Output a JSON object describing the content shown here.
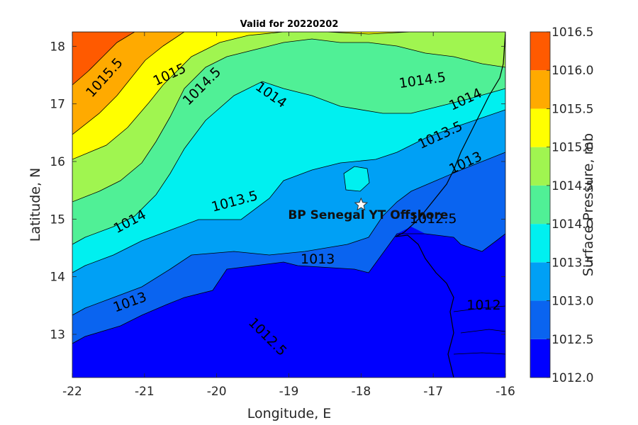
{
  "chart_data": {
    "type": "contour",
    "title": "Valid for 20220202",
    "xlabel": "Longitude, E",
    "ylabel": "Latitude, N",
    "xlim": [
      -22,
      -16
    ],
    "ylim": [
      12.25,
      18.25
    ],
    "xticks": [
      -22,
      -21,
      -20,
      -19,
      -18,
      -17,
      -16
    ],
    "yticks": [
      13,
      14,
      15,
      16,
      17,
      18
    ],
    "colorbar": {
      "label": "Surface Pressure, mb",
      "ticks": [
        "1012.0",
        "1012.5",
        "1013.0",
        "1013.5",
        "1014.0",
        "1014.5",
        "1015.0",
        "1015.5",
        "1016.0",
        "1016.5"
      ],
      "levels": [
        1012.0,
        1012.5,
        1013.0,
        1013.5,
        1014.0,
        1014.5,
        1015.0,
        1015.5,
        1016.0,
        1016.5
      ],
      "colors": [
        "#0000ff",
        "#0a64f0",
        "#00a0f5",
        "#00f0f0",
        "#50f096",
        "#a0f550",
        "#ffff00",
        "#ffaa00",
        "#ff5a00"
      ]
    },
    "contour_labels": [
      {
        "text": "1015.5",
        "lon": -21.55,
        "lat": 17.45,
        "angle": -48
      },
      {
        "text": "1015",
        "lon": -20.65,
        "lat": 17.5,
        "angle": -25
      },
      {
        "text": "1014.5",
        "lon": -20.2,
        "lat": 17.3,
        "angle": -45
      },
      {
        "text": "1014",
        "lon": -19.25,
        "lat": 17.15,
        "angle": 35
      },
      {
        "text": "1014.5",
        "lon": -17.15,
        "lat": 17.4,
        "angle": -8
      },
      {
        "text": "1014",
        "lon": -16.55,
        "lat": 17.07,
        "angle": -25
      },
      {
        "text": "1013.5",
        "lon": -16.9,
        "lat": 16.45,
        "angle": -25
      },
      {
        "text": "1013",
        "lon": -16.55,
        "lat": 15.97,
        "angle": -25
      },
      {
        "text": "1013.5",
        "lon": -19.75,
        "lat": 15.3,
        "angle": -15
      },
      {
        "text": "1014",
        "lon": -21.2,
        "lat": 14.95,
        "angle": -28
      },
      {
        "text": "1012.5",
        "lon": -17.0,
        "lat": 15.0,
        "angle": 0
      },
      {
        "text": "1013",
        "lon": -18.6,
        "lat": 14.3,
        "angle": 0
      },
      {
        "text": "1013",
        "lon": -21.2,
        "lat": 13.55,
        "angle": -20
      },
      {
        "text": "1012.5",
        "lon": -19.3,
        "lat": 12.95,
        "angle": 45
      },
      {
        "text": "1012",
        "lon": -16.3,
        "lat": 13.5,
        "angle": 0
      }
    ],
    "annotations": [
      {
        "text": "BP Senegal YT Offshore",
        "lon": -18.0,
        "lat": 15.25,
        "marker": "star"
      }
    ]
  }
}
